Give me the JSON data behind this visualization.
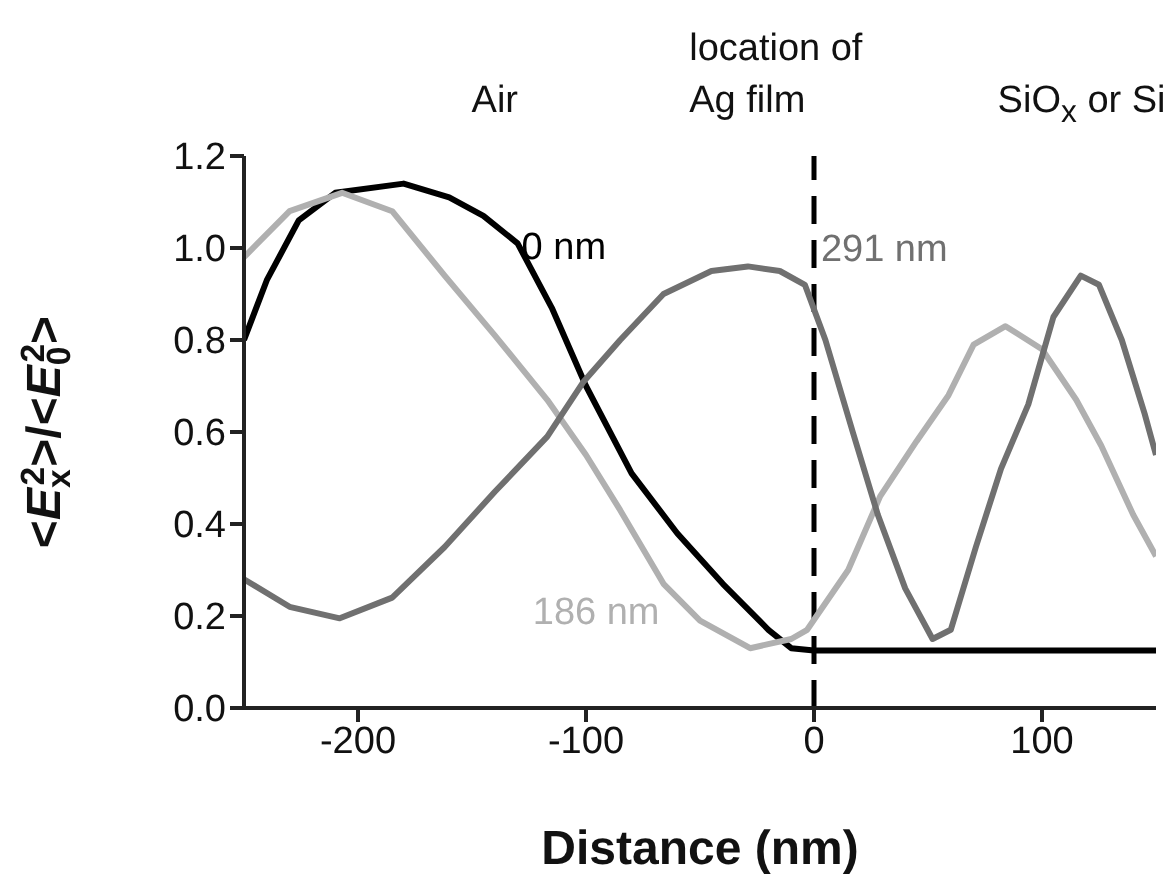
{
  "chart_data": {
    "type": "line",
    "xlabel": "Distance (nm)",
    "ylabel": "<E$_{x}$$^{2}$>/<E$_{0}$$^{2}$>",
    "xlim": [
      -250,
      150
    ],
    "xticks": [
      -200,
      -100,
      0,
      100
    ],
    "ylim": [
      0,
      1.2
    ],
    "yticks": [
      {
        "value": 0,
        "label": "0.0"
      },
      0.2,
      0.4,
      0.6,
      0.8,
      {
        "value": 1,
        "label": "1.0"
      },
      1.2
    ],
    "grid": false,
    "legend": false,
    "marker": "none",
    "line_style": "solid",
    "series": [
      {
        "name": "0 nm",
        "color": "#000000",
        "x": [
          -250,
          -240,
          -226,
          -210,
          -180,
          -160,
          -145,
          -130,
          -115,
          -100,
          -80,
          -60,
          -40,
          -20,
          -10,
          0,
          150
        ],
        "values": [
          0.8,
          0.93,
          1.06,
          1.12,
          1.14,
          1.11,
          1.07,
          1.01,
          0.87,
          0.7,
          0.51,
          0.38,
          0.27,
          0.17,
          0.13,
          0.125,
          0.125
        ]
      },
      {
        "name": "186 nm",
        "color": "#b0b0b0",
        "x": [
          -250,
          -230,
          -207,
          -185,
          -162,
          -140,
          -117,
          -100,
          -85,
          -66,
          -50,
          -28,
          -10,
          -3,
          15,
          29,
          45,
          59,
          70,
          84,
          100,
          115,
          126,
          140,
          150
        ],
        "values": [
          0.98,
          1.08,
          1.12,
          1.08,
          0.94,
          0.81,
          0.67,
          0.55,
          0.43,
          0.27,
          0.19,
          0.13,
          0.15,
          0.17,
          0.3,
          0.46,
          0.58,
          0.68,
          0.79,
          0.83,
          0.78,
          0.67,
          0.57,
          0.42,
          0.33
        ]
      },
      {
        "name": "291 nm",
        "color": "#707070",
        "x": [
          -250,
          -230,
          -208,
          -185,
          -162,
          -140,
          -117,
          -101,
          -85,
          -66,
          -45,
          -29,
          -15,
          -4,
          5,
          17,
          28,
          40,
          52,
          60,
          71,
          82,
          94,
          105,
          117,
          125,
          135,
          145,
          150
        ],
        "values": [
          0.28,
          0.22,
          0.195,
          0.24,
          0.35,
          0.47,
          0.59,
          0.71,
          0.8,
          0.9,
          0.95,
          0.96,
          0.95,
          0.92,
          0.8,
          0.6,
          0.42,
          0.26,
          0.15,
          0.17,
          0.35,
          0.52,
          0.66,
          0.85,
          0.94,
          0.92,
          0.8,
          0.64,
          0.55
        ]
      }
    ],
    "ref_lines": [
      {
        "axis": "x",
        "value": 0,
        "color": "#000000",
        "line_style": "dashed"
      }
    ],
    "annotations": [
      "Air",
      "location of Ag film",
      "SiO$_{x}$ or Si"
    ]
  }
}
